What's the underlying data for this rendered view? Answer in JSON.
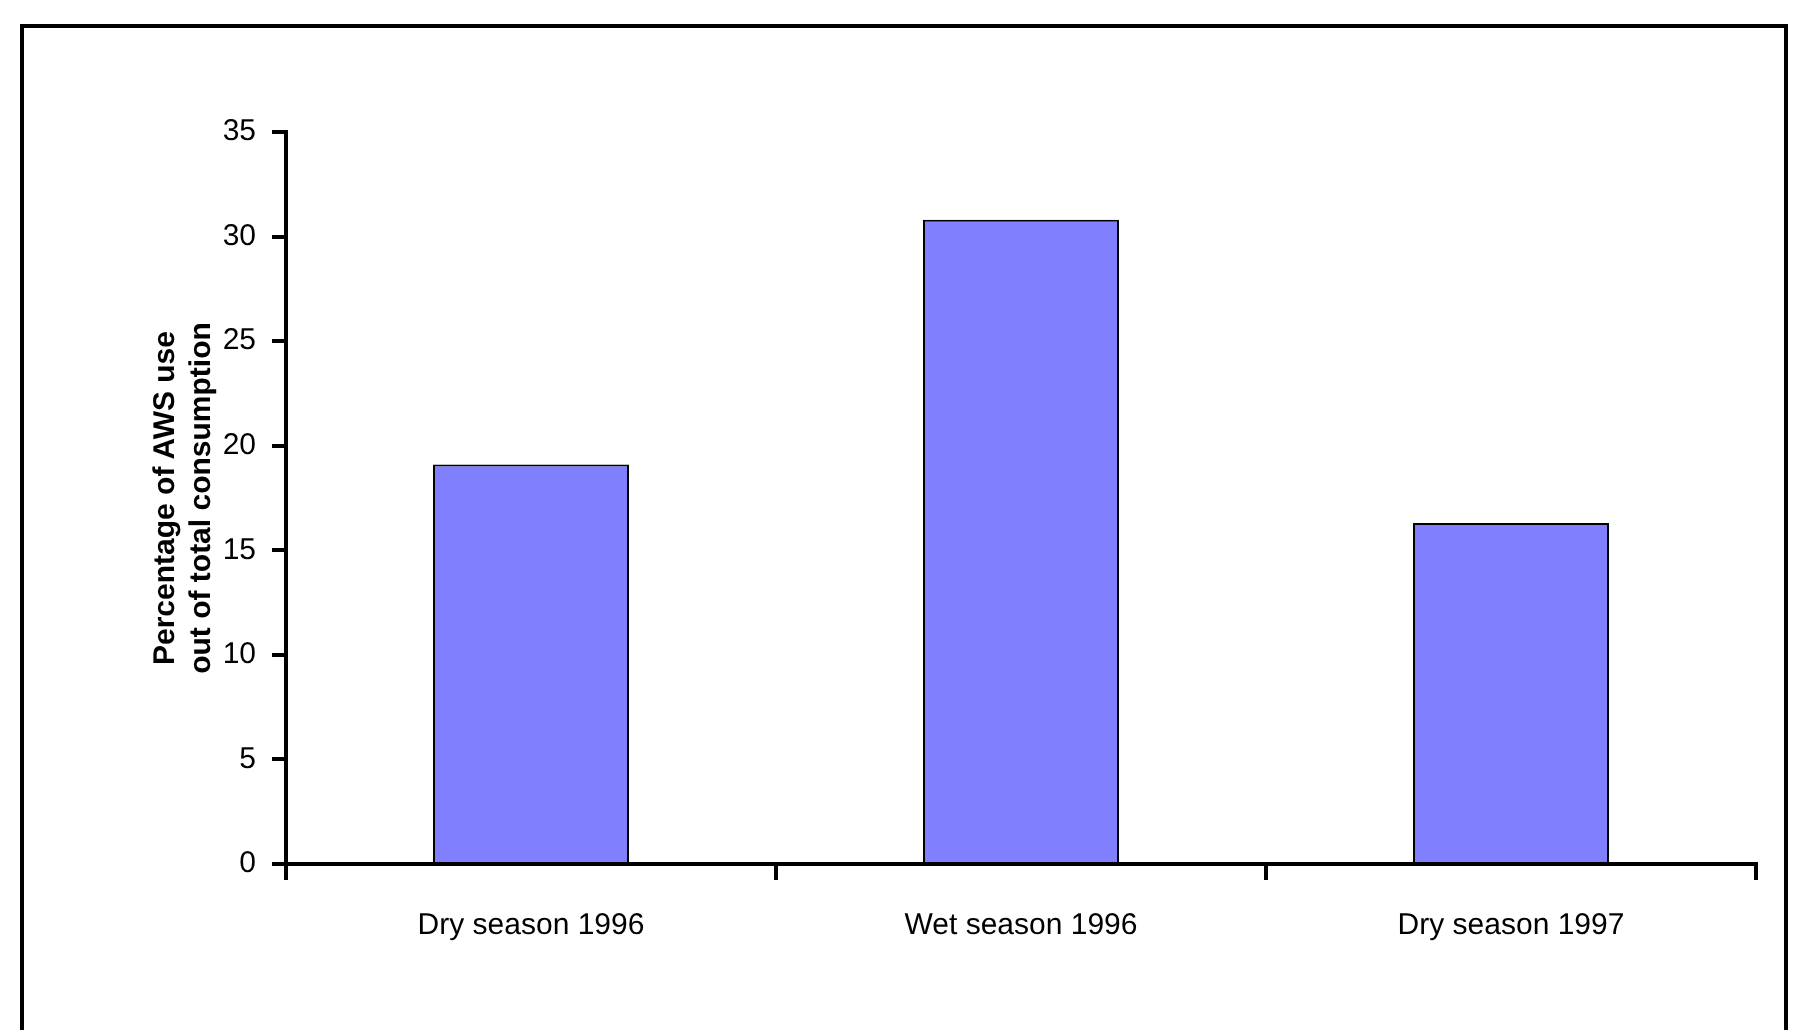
{
  "chart_data": {
    "type": "bar",
    "ylabel": "Percentage of AWS use\nout of total consumption",
    "categories": [
      "Dry season 1996",
      "Wet season 1996",
      "Dry season 1997"
    ],
    "values": [
      19.1,
      30.8,
      16.3
    ],
    "color": "#8080ff",
    "ylim": [
      0,
      35
    ],
    "yticks": [
      0,
      5,
      10,
      15,
      20,
      25,
      30,
      35
    ]
  }
}
